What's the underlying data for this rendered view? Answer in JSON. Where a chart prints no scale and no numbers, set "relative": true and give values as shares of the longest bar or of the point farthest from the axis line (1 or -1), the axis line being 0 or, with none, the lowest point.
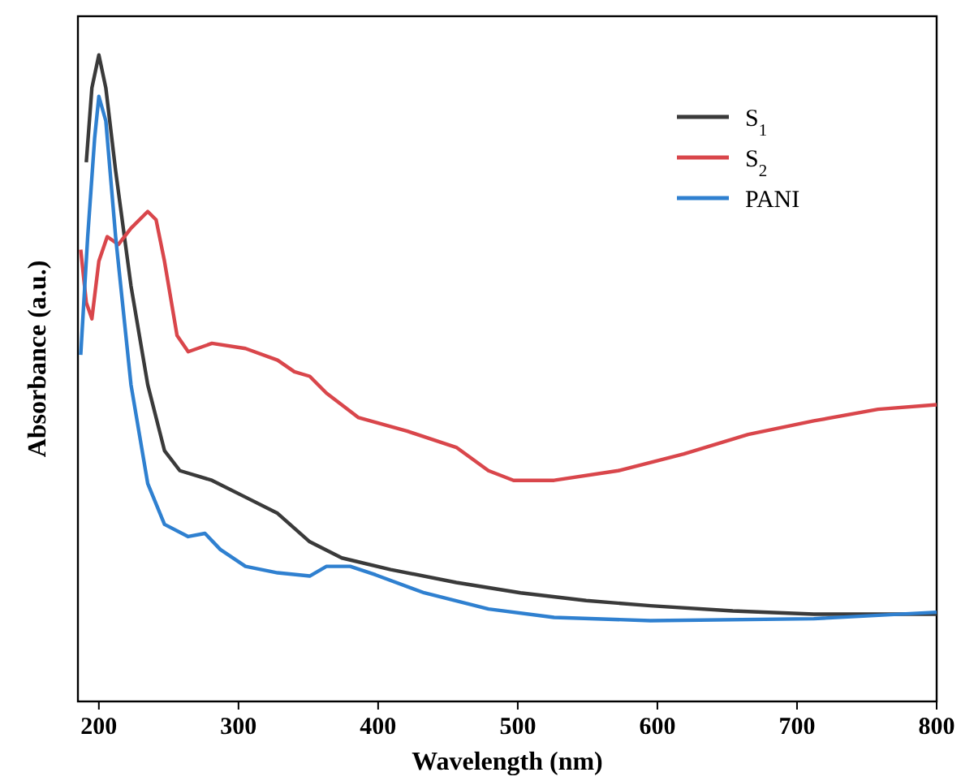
{
  "chart_data": {
    "type": "line",
    "xlabel": "Wavelength (nm)",
    "ylabel": "Absorbance (a.u.)",
    "relative": true,
    "xlim": [
      185,
      800
    ],
    "xticks": [
      200,
      300,
      400,
      500,
      600,
      700,
      800
    ],
    "tick_labels": "x",
    "legend": "top right",
    "series": [
      {
        "name": "S$_{1}$",
        "color": "#3a3a3a",
        "x": [
          191,
          195,
          200,
          205,
          212,
          223,
          235,
          247,
          258,
          281,
          305,
          328,
          351,
          374,
          409,
          456,
          502,
          549,
          595,
          654,
          712,
          800
        ],
        "values": [
          0.834,
          0.949,
          1,
          0.949,
          0.821,
          0.643,
          0.49,
          0.388,
          0.357,
          0.342,
          0.316,
          0.291,
          0.247,
          0.222,
          0.204,
          0.184,
          0.168,
          0.156,
          0.148,
          0.14,
          0.135,
          0.135
        ]
      },
      {
        "name": "S$_{2}$",
        "color": "#d9464b",
        "x": [
          187,
          191,
          195,
          200,
          206,
          214,
          223,
          235,
          241,
          247,
          256,
          264,
          281,
          305,
          328,
          340,
          351,
          363,
          386,
          421,
          456,
          479,
          497,
          526,
          572,
          619,
          665,
          712,
          758,
          800
        ],
        "values": [
          0.699,
          0.617,
          0.592,
          0.681,
          0.719,
          0.707,
          0.732,
          0.758,
          0.745,
          0.681,
          0.566,
          0.541,
          0.554,
          0.546,
          0.528,
          0.51,
          0.503,
          0.477,
          0.439,
          0.418,
          0.393,
          0.357,
          0.342,
          0.342,
          0.357,
          0.383,
          0.413,
          0.434,
          0.452,
          0.459
        ]
      },
      {
        "name": "PANI",
        "color": "#2f80d0",
        "x": [
          187,
          192,
          197,
          200,
          205,
          212,
          223,
          235,
          247,
          264,
          276,
          287,
          305,
          328,
          351,
          363,
          380,
          398,
          433,
          479,
          526,
          595,
          712,
          800
        ],
        "values": [
          0.536,
          0.719,
          0.872,
          0.936,
          0.898,
          0.719,
          0.49,
          0.337,
          0.274,
          0.255,
          0.26,
          0.235,
          0.209,
          0.199,
          0.194,
          0.209,
          0.209,
          0.196,
          0.168,
          0.143,
          0.13,
          0.125,
          0.128,
          0.138
        ]
      }
    ]
  }
}
